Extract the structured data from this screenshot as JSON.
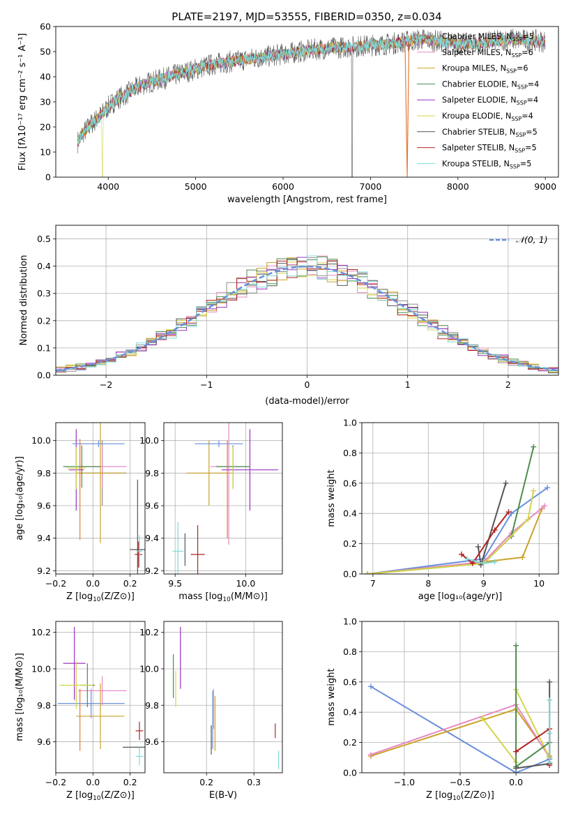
{
  "figure_title": "PLATE=2197, MJD=53555, FIBERID=0350, z=0.034",
  "palette": [
    "#8c8c8c",
    "#e78ac3",
    "#c9a227",
    "#4c8c4c",
    "#9b30c0",
    "#d4d44a",
    "#555555",
    "#b22222",
    "#7fd7d7"
  ],
  "chart_data": [
    {
      "id": "spectrum",
      "type": "line",
      "title": "PLATE=2197, MJD=53555, FIBERID=0350, z=0.034",
      "xlabel": "wavelength [Angstrom, rest frame]",
      "ylabel": "Flux [fλ10⁻¹⁷ erg cm⁻² s⁻¹ A⁻¹]",
      "xlim": [
        3400,
        9150
      ],
      "ylim": [
        0,
        60
      ],
      "xticks": [
        4000,
        5000,
        6000,
        7000,
        8000,
        9000
      ],
      "yticks": [
        0,
        10,
        20,
        30,
        40,
        50,
        60
      ],
      "grid": false,
      "legend": "top-right",
      "continuum": {
        "x": [
          3650,
          3700,
          3800,
          3900,
          4000,
          4100,
          4200,
          4300,
          4400,
          4500,
          4600,
          4800,
          5000,
          5200,
          5400,
          5600,
          5800,
          6000,
          6200,
          6400,
          6600,
          6800,
          7000,
          7200,
          7400,
          7600,
          7800,
          8000,
          8200,
          8400,
          8600,
          8800,
          9000
        ],
        "y": [
          14,
          17,
          21,
          24,
          28,
          31,
          33,
          35,
          37,
          38,
          39,
          41,
          43,
          45,
          46,
          47,
          48,
          49,
          50,
          51,
          51.5,
          52,
          52.5,
          53,
          54,
          55,
          54,
          53,
          53,
          54,
          55,
          54.5,
          54
        ]
      },
      "dips": [
        {
          "x": 3935,
          "y": 0
        },
        {
          "x": 6790,
          "y": 0
        },
        {
          "x": 7420,
          "y": 0
        }
      ],
      "series": [
        {
          "label": "Chabrier MILES, N",
          "sub": "SSP",
          "eq": "=5"
        },
        {
          "label": "Salpeter MILES, N",
          "sub": "SSP",
          "eq": "=6"
        },
        {
          "label": "Kroupa MILES, N",
          "sub": "SSP",
          "eq": "=6"
        },
        {
          "label": "Chabrier ELODIE, N",
          "sub": "SSP",
          "eq": "=4"
        },
        {
          "label": "Salpeter ELODIE, N",
          "sub": "SSP",
          "eq": "=4"
        },
        {
          "label": "Kroupa ELODIE, N",
          "sub": "SSP",
          "eq": "=4"
        },
        {
          "label": "Chabrier STELIB, N",
          "sub": "SSP",
          "eq": "=5"
        },
        {
          "label": "Salpeter STELIB, N",
          "sub": "SSP",
          "eq": "=5"
        },
        {
          "label": "Kroupa STELIB, N",
          "sub": "SSP",
          "eq": "=5"
        }
      ]
    },
    {
      "id": "residuals",
      "type": "histogram",
      "xlabel": "(data-model)/error",
      "ylabel": "Normed distribution",
      "xlim": [
        -2.5,
        2.5
      ],
      "ylim": [
        0,
        0.55
      ],
      "xticks": [
        -2,
        -1,
        0,
        1,
        2
      ],
      "yticks": [
        0.0,
        0.1,
        0.2,
        0.3,
        0.4,
        0.5
      ],
      "grid": true,
      "legend": "top-right",
      "reference_label": "𝒩(0, 1)",
      "bin_width": 0.1
    },
    {
      "id": "age_vs_Z",
      "type": "errorbar",
      "xlabel_main": "Z [log",
      "xlabel_sub": "10",
      "xlabel_tail": "(Z/Z⊙)]",
      "ylabel": "age  [log₁₀(age/yr)]",
      "xlim": [
        -0.2,
        0.28
      ],
      "ylim": [
        9.18,
        10.11
      ],
      "xticks": [
        -0.2,
        0.0,
        0.2
      ],
      "yticks": [
        9.2,
        9.4,
        9.6,
        9.8,
        10.0
      ],
      "points": [
        {
          "c": 0,
          "x": 0.05,
          "y": 9.8,
          "xe": 0.13,
          "ye": 0.2
        },
        {
          "c": 1,
          "x": 0.05,
          "y": 9.84,
          "xe": 0.13,
          "ye": 0.13
        },
        {
          "c": 2,
          "x": 0.04,
          "y": 9.8,
          "xe": 0.13,
          "ye": 0.43
        },
        {
          "c": 3,
          "x": -0.06,
          "y": 9.84,
          "xe": 0.1,
          "ye": 0.13
        },
        {
          "c": 4,
          "x": -0.09,
          "y": 9.82,
          "xe": 0.04,
          "ye": 0.25
        },
        {
          "c": 5,
          "x": -0.09,
          "y": 9.83,
          "xe": 0.05,
          "ye": 0.13
        },
        {
          "c": 6,
          "x": 0.24,
          "y": 9.33,
          "xe": 0.04,
          "ye": 0.43
        },
        {
          "c": 7,
          "x": 0.245,
          "y": 9.3,
          "xe": 0.02,
          "ye": 0.08
        },
        {
          "c": 8,
          "x": 0.25,
          "y": 9.32,
          "xe": 0.015,
          "ye": 0.1
        },
        {
          "c": 9,
          "x": 0.03,
          "y": 9.98,
          "xe": 0.14,
          "ye": 0.02
        },
        {
          "c": 10,
          "x": -0.07,
          "y": 9.7,
          "xe": 0.0,
          "ye": 0.31
        }
      ]
    },
    {
      "id": "age_vs_mass",
      "type": "errorbar",
      "xlabel_main": "mass [log",
      "xlabel_sub": "10",
      "xlabel_tail": "(M/M⊙)]",
      "xlim": [
        9.42,
        10.26
      ],
      "ylim": [
        9.18,
        10.11
      ],
      "xticks": [
        9.5,
        10.0
      ],
      "yticks": [
        9.2,
        9.4,
        9.6,
        9.8,
        10.0
      ],
      "points": [
        {
          "c": 2,
          "x": 9.74,
          "y": 9.8,
          "xe": 0.16,
          "ye": 0.2
        },
        {
          "c": 1,
          "x": 9.88,
          "y": 9.84,
          "xe": 0.13,
          "ye": 0.48
        },
        {
          "c": 3,
          "x": 9.91,
          "y": 9.84,
          "xe": 0.12,
          "ye": 0.13
        },
        {
          "c": 4,
          "x": 10.03,
          "y": 9.82,
          "xe": 0.2,
          "ye": 0.25
        },
        {
          "c": 5,
          "x": 9.91,
          "y": 9.83,
          "xe": 0.0,
          "ye": 0.13
        },
        {
          "c": 9,
          "x": 9.81,
          "y": 9.98,
          "xe": 0.17,
          "ye": 0.02
        },
        {
          "c": 6,
          "x": 9.57,
          "y": 9.33,
          "xe": 0.0,
          "ye": 0.1
        },
        {
          "c": 7,
          "x": 9.66,
          "y": 9.3,
          "xe": 0.05,
          "ye": 0.18
        },
        {
          "c": 8,
          "x": 9.52,
          "y": 9.32,
          "xe": 0.04,
          "ye": 0.18
        },
        {
          "c": 10,
          "x": 9.87,
          "y": 9.7,
          "xe": 0.0,
          "ye": 0.3
        }
      ]
    },
    {
      "id": "weight_vs_age",
      "type": "line",
      "xlabel": "age  [log₁₀(age/yr)]",
      "ylabel": "mass weight",
      "xlim": [
        6.8,
        10.35
      ],
      "ylim": [
        0,
        1
      ],
      "xticks": [
        7,
        8,
        9,
        10
      ],
      "yticks": [
        0.0,
        0.2,
        0.4,
        0.6,
        0.8,
        1.0
      ],
      "series": [
        {
          "c": 9,
          "x": [
            6.9,
            9.0,
            9.5,
            10.15
          ],
          "y": [
            0.0,
            0.1,
            0.4,
            0.57
          ]
        },
        {
          "c": 2,
          "x": [
            6.9,
            9.0,
            9.7,
            10.05
          ],
          "y": [
            0.0,
            0.08,
            0.11,
            0.43
          ]
        },
        {
          "c": 1,
          "x": [
            6.9,
            9.0,
            9.5,
            10.1
          ],
          "y": [
            0.0,
            0.08,
            0.27,
            0.45
          ]
        },
        {
          "c": 3,
          "x": [
            6.9,
            9.0,
            9.5,
            9.9
          ],
          "y": [
            0.0,
            0.07,
            0.25,
            0.84
          ]
        },
        {
          "c": 5,
          "x": [
            6.9,
            9.0,
            9.8,
            9.9
          ],
          "y": [
            0.0,
            0.07,
            0.36,
            0.55
          ]
        },
        {
          "c": 6,
          "x": [
            8.9,
            8.95,
            9.4
          ],
          "y": [
            0.18,
            0.06,
            0.6
          ]
        },
        {
          "c": 7,
          "x": [
            8.6,
            8.8,
            9.2,
            9.45
          ],
          "y": [
            0.13,
            0.07,
            0.29,
            0.41
          ]
        },
        {
          "c": 8,
          "x": [
            8.7,
            9.0,
            9.2
          ],
          "y": [
            0.1,
            0.07,
            0.08
          ]
        }
      ]
    },
    {
      "id": "mass_vs_Z",
      "type": "errorbar",
      "xlabel_main": "Z [log",
      "xlabel_sub": "10",
      "xlabel_tail": "(Z/Z⊙)]",
      "ylabel": "mass [log₁₀(M/M⊙)]",
      "xlim": [
        -0.2,
        0.28
      ],
      "ylim": [
        9.43,
        10.26
      ],
      "xticks": [
        -0.2,
        0.0,
        0.2
      ],
      "yticks": [
        9.6,
        9.8,
        10.0,
        10.2
      ],
      "points": [
        {
          "c": 9,
          "x": -0.01,
          "y": 9.81,
          "xe": 0.18,
          "ye": 0.08
        },
        {
          "c": 2,
          "x": 0.04,
          "y": 9.74,
          "xe": 0.13,
          "ye": 0.18
        },
        {
          "c": 1,
          "x": 0.05,
          "y": 9.88,
          "xe": 0.13,
          "ye": 0.08
        },
        {
          "c": 3,
          "x": -0.03,
          "y": 9.91,
          "xe": 0.04,
          "ye": 0.12
        },
        {
          "c": 4,
          "x": -0.1,
          "y": 10.03,
          "xe": 0.06,
          "ye": 0.2
        },
        {
          "c": 5,
          "x": -0.09,
          "y": 9.91,
          "xe": 0.09,
          "ye": 0.13
        },
        {
          "c": 10,
          "x": -0.07,
          "y": 9.72,
          "xe": 0.0,
          "ye": 0.17
        },
        {
          "c": 6,
          "x": 0.22,
          "y": 9.57,
          "xe": 0.06,
          "ye": 0.0
        },
        {
          "c": 7,
          "x": 0.25,
          "y": 9.66,
          "xe": 0.02,
          "ye": 0.05
        },
        {
          "c": 8,
          "x": 0.25,
          "y": 9.52,
          "xe": 0.02,
          "ye": 0.05
        }
      ]
    },
    {
      "id": "mass_vs_ebv",
      "type": "errorbar",
      "xlabel": "E(B-V)",
      "xlim": [
        0.11,
        0.36
      ],
      "ylim": [
        9.43,
        10.26
      ],
      "xticks": [
        0.2,
        0.3
      ],
      "yticks": [
        9.6,
        9.8,
        10.0,
        10.2
      ],
      "points": [
        {
          "c": 3,
          "x": 0.13,
          "y": 9.96,
          "xe": 0.0,
          "ye": 0.12
        },
        {
          "c": 5,
          "x": 0.135,
          "y": 9.89,
          "xe": 0.0,
          "ye": 0.1
        },
        {
          "c": 4,
          "x": 0.145,
          "y": 10.06,
          "xe": 0.0,
          "ye": 0.17
        },
        {
          "c": 1,
          "x": 0.215,
          "y": 9.78,
          "xe": 0.0,
          "ye": 0.11
        },
        {
          "c": 6,
          "x": 0.21,
          "y": 9.61,
          "xe": 0.0,
          "ye": 0.08
        },
        {
          "c": 9,
          "x": 0.213,
          "y": 9.72,
          "xe": 0.0,
          "ye": 0.16
        },
        {
          "c": 2,
          "x": 0.218,
          "y": 9.7,
          "xe": 0.0,
          "ye": 0.15
        },
        {
          "c": 7,
          "x": 0.345,
          "y": 9.66,
          "xe": 0.0,
          "ye": 0.04
        },
        {
          "c": 8,
          "x": 0.352,
          "y": 9.5,
          "xe": 0.0,
          "ye": 0.05
        }
      ]
    },
    {
      "id": "weight_vs_Z",
      "type": "line",
      "xlabel_main": "Z [log",
      "xlabel_sub": "10",
      "xlabel_tail": "(Z/Z⊙)]",
      "ylabel": "mass weight",
      "xlim": [
        -1.38,
        0.38
      ],
      "ylim": [
        0,
        1
      ],
      "xticks": [
        -1.0,
        -0.5,
        0.0
      ],
      "yticks": [
        0.0,
        0.2,
        0.4,
        0.6,
        0.8,
        1.0
      ],
      "series": [
        {
          "c": 9,
          "x": [
            -1.3,
            0.0,
            0.3
          ],
          "y": [
            0.57,
            0.0,
            0.09
          ]
        },
        {
          "c": 2,
          "x": [
            -1.3,
            0.0,
            0.3
          ],
          "y": [
            0.11,
            0.42,
            0.11
          ]
        },
        {
          "c": 1,
          "x": [
            -1.3,
            0.0,
            0.3
          ],
          "y": [
            0.12,
            0.45,
            0.1
          ]
        },
        {
          "c": 5,
          "x": [
            -0.3,
            0.0,
            0.0,
            0.3
          ],
          "y": [
            0.36,
            0.07,
            0.55,
            0.1
          ]
        },
        {
          "c": 3,
          "x": [
            0.0,
            0.0,
            0.3
          ],
          "y": [
            0.84,
            0.04,
            0.2
          ]
        },
        {
          "c": 6,
          "x": [
            0.0,
            0.3,
            0.3
          ],
          "y": [
            0.03,
            0.06,
            0.6
          ]
        },
        {
          "c": 7,
          "x": [
            0.0,
            0.3,
            0.3
          ],
          "y": [
            0.14,
            0.29,
            0.05
          ]
        },
        {
          "c": 8,
          "x": [
            0.3,
            0.3,
            0.3
          ],
          "y": [
            0.07,
            0.48,
            0.26
          ]
        }
      ]
    }
  ]
}
